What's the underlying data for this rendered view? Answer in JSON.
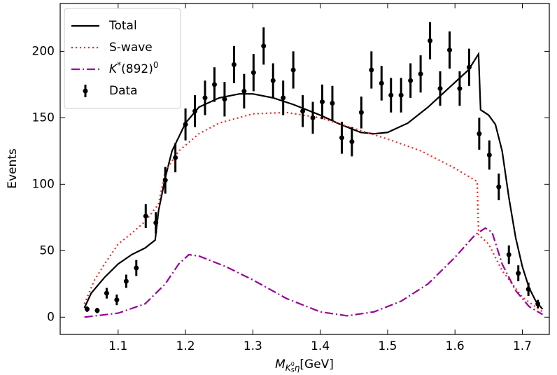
{
  "chart_data": {
    "type": "line",
    "xlabel": [
      "M",
      "K",
      "S",
      "0",
      "η",
      "[GeV]"
    ],
    "ylabel": "Events",
    "xlim": [
      1.014,
      1.74
    ],
    "ylim": [
      -13,
      236
    ],
    "xticks": [
      1.1,
      1.2,
      1.3,
      1.4,
      1.5,
      1.6,
      1.7
    ],
    "yticks": [
      0,
      50,
      100,
      150,
      200
    ],
    "legend": "upper left",
    "series": [
      {
        "name": [
          "Total"
        ],
        "color": "#000000",
        "style": "solid",
        "x": [
          1.05,
          1.06,
          1.08,
          1.1,
          1.12,
          1.14,
          1.155,
          1.16,
          1.17,
          1.18,
          1.2,
          1.22,
          1.25,
          1.28,
          1.3,
          1.33,
          1.36,
          1.4,
          1.43,
          1.46,
          1.48,
          1.5,
          1.53,
          1.56,
          1.59,
          1.62,
          1.635,
          1.638,
          1.65,
          1.66,
          1.67,
          1.68,
          1.69,
          1.7,
          1.71,
          1.72,
          1.73
        ],
        "values": [
          7,
          18,
          30,
          40,
          47,
          52,
          58,
          80,
          105,
          125,
          146,
          158,
          165,
          168,
          168,
          165,
          160,
          152,
          145,
          139,
          138,
          139,
          146,
          158,
          172,
          186,
          198,
          156,
          152,
          145,
          125,
          90,
          60,
          38,
          22,
          12,
          6
        ]
      },
      {
        "name": [
          "S-wave"
        ],
        "color": "#ff2020",
        "style": "dotted",
        "x": [
          1.05,
          1.065,
          1.08,
          1.1,
          1.12,
          1.14,
          1.16,
          1.17,
          1.19,
          1.22,
          1.25,
          1.3,
          1.35,
          1.4,
          1.45,
          1.5,
          1.55,
          1.6,
          1.633,
          1.635,
          1.65,
          1.67,
          1.7,
          1.73
        ],
        "values": [
          10,
          28,
          40,
          55,
          63,
          72,
          85,
          110,
          125,
          138,
          146,
          153,
          154,
          150,
          142,
          134,
          125,
          112,
          102,
          62,
          55,
          35,
          15,
          4
        ]
      },
      {
        "name": [
          "K",
          "*",
          "(892)",
          "0"
        ],
        "color": "#990099",
        "style": "dashdot",
        "x": [
          1.05,
          1.1,
          1.14,
          1.17,
          1.19,
          1.205,
          1.22,
          1.26,
          1.3,
          1.35,
          1.4,
          1.44,
          1.48,
          1.52,
          1.56,
          1.6,
          1.63,
          1.645,
          1.655,
          1.67,
          1.69,
          1.71,
          1.73
        ],
        "values": [
          0,
          3,
          10,
          25,
          40,
          47,
          46,
          38,
          28,
          14,
          4,
          1,
          4,
          12,
          25,
          45,
          62,
          67,
          64,
          40,
          20,
          8,
          2
        ]
      },
      {
        "name": [
          "Data"
        ],
        "color": "#000000",
        "style": "errorbar",
        "x": [
          1.054,
          1.069,
          1.083,
          1.098,
          1.112,
          1.127,
          1.141,
          1.156,
          1.17,
          1.185,
          1.2,
          1.214,
          1.229,
          1.243,
          1.258,
          1.272,
          1.287,
          1.301,
          1.316,
          1.33,
          1.345,
          1.36,
          1.374,
          1.389,
          1.403,
          1.418,
          1.432,
          1.447,
          1.461,
          1.476,
          1.491,
          1.505,
          1.52,
          1.534,
          1.549,
          1.563,
          1.578,
          1.592,
          1.607,
          1.621,
          1.636,
          1.651,
          1.665,
          1.68,
          1.694,
          1.709,
          1.723
        ],
        "values": [
          6,
          5,
          18,
          13,
          27,
          37,
          76,
          71,
          103,
          120,
          145,
          155,
          165,
          175,
          164,
          190,
          170,
          184,
          204,
          178,
          165,
          186,
          155,
          150,
          162,
          161,
          135,
          132,
          154,
          186,
          176,
          167,
          167,
          178,
          183,
          208,
          172,
          201,
          172,
          188,
          138,
          122,
          98,
          47,
          33,
          21,
          10
        ],
        "errors": [
          2,
          2,
          4,
          4,
          5,
          6,
          9,
          8,
          10,
          11,
          12,
          12,
          13,
          13,
          13,
          14,
          13,
          14,
          14,
          13,
          13,
          14,
          12,
          12,
          13,
          13,
          12,
          11,
          12,
          14,
          13,
          13,
          13,
          13,
          14,
          14,
          13,
          14,
          13,
          14,
          12,
          11,
          10,
          7,
          6,
          5,
          3
        ]
      }
    ]
  }
}
